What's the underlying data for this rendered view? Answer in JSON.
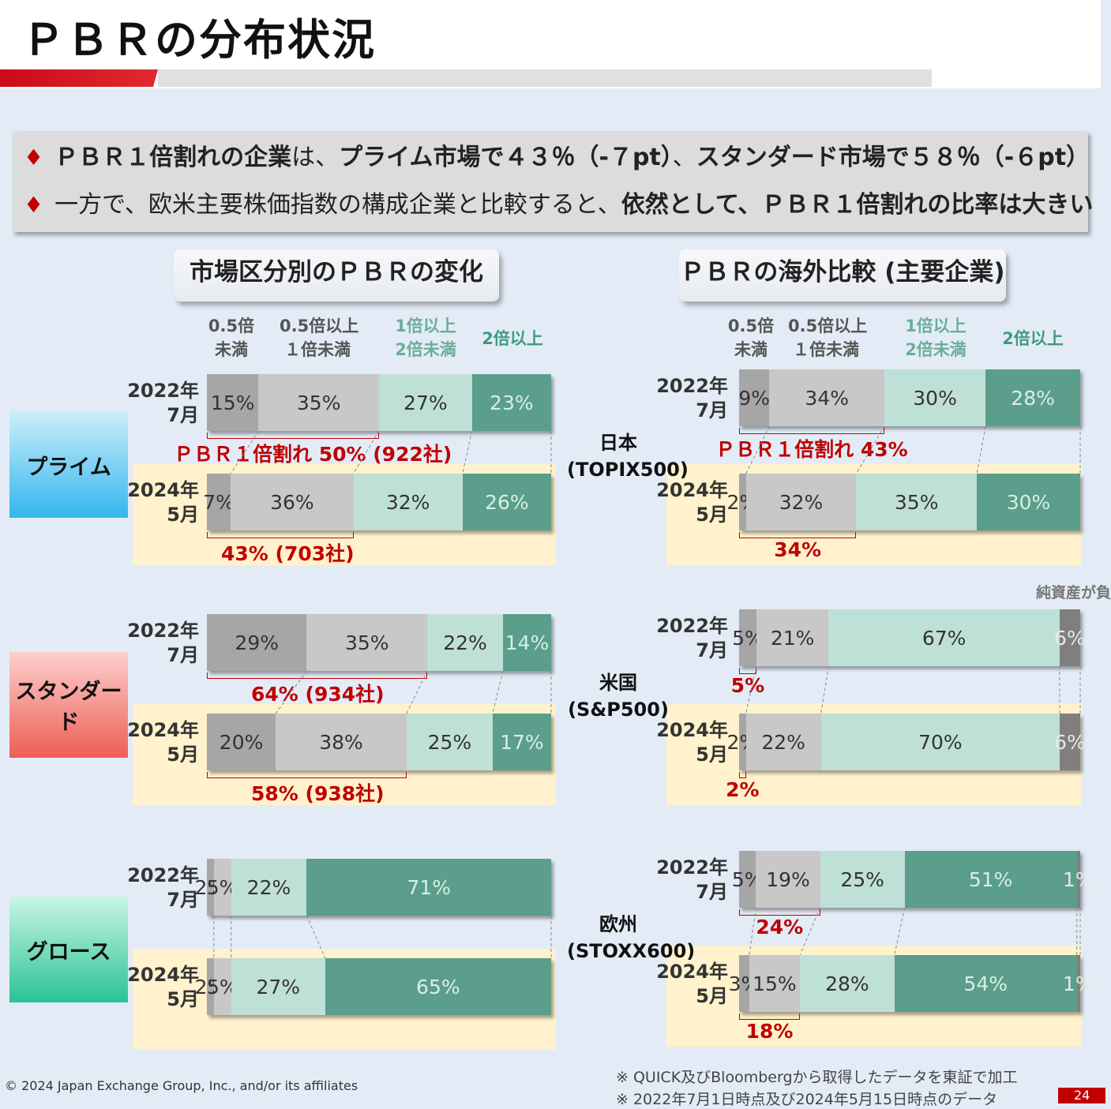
{
  "page": {
    "title": "ＰＢＲの分布状況",
    "bullets": [
      [
        {
          "text": "ＰＢＲ１倍割れの企業",
          "bold": true
        },
        {
          "text": "は、",
          "bold": false
        },
        {
          "text": "プライム市場で４３％（-７pt）",
          "bold": true
        },
        {
          "text": "、",
          "bold": false
        },
        {
          "text": "スタンダード市場で５８％（-６pt）",
          "bold": true
        }
      ],
      [
        {
          "text": "一方で、欧米主要株価指数の構成企業と比較すると、",
          "bold": false
        },
        {
          "text": "依然として、ＰＢＲ１倍割れの比率は大きい",
          "bold": true
        }
      ]
    ],
    "side_note": "純資産が負",
    "copyright": "© 2024 Japan Exchange Group, Inc., and/or its affiliates",
    "notes": [
      "※ QUICK及びBloombergから取得したデータを東証で加工",
      "※ 2022年7月1日時点及び2024年5月15日時点のデータ"
    ],
    "page_number": "24"
  },
  "colors": {
    "c1": "#a6a6a6",
    "c2": "#c8c8c8",
    "c3": "#bfe0d6",
    "c4": "#5a9e8b",
    "neg": "#7f7f7f",
    "callout": "#c00000",
    "band": "#fff2cc"
  },
  "chart_data": [
    {
      "type": "bar",
      "title": "市場区分別のＰＢＲの変化",
      "stacked": true,
      "orientation": "horizontal",
      "categories_legend": [
        "0.5倍\n未満",
        "0.5倍以上\n１倍未満",
        "1倍以上\n2倍未満",
        "2倍以上"
      ],
      "groups": [
        {
          "name": "プライム",
          "label_bg": [
            "#c9eefb",
            "#35b6ec"
          ],
          "rows": [
            {
              "year": "2022年\n7月",
              "values": [
                15,
                35,
                27,
                23
              ],
              "labels": [
                "15%",
                "35%",
                "27%",
                "23%"
              ],
              "callout": "ＰＢＲ１倍割れ 50% (922社)"
            },
            {
              "year": "2024年\n5月",
              "values": [
                7,
                36,
                32,
                26
              ],
              "labels": [
                "7%",
                "36%",
                "32%",
                "26%"
              ],
              "callout": "43% (703社)"
            }
          ]
        },
        {
          "name": "スタンダード",
          "label_bg": [
            "#fcd0cd",
            "#ef5d56"
          ],
          "rows": [
            {
              "year": "2022年\n7月",
              "values": [
                29,
                35,
                22,
                14
              ],
              "labels": [
                "29%",
                "35%",
                "22%",
                "14%"
              ],
              "callout": "64% (934社)"
            },
            {
              "year": "2024年\n5月",
              "values": [
                20,
                38,
                25,
                17
              ],
              "labels": [
                "20%",
                "38%",
                "25%",
                "17%"
              ],
              "callout": "58% (938社)"
            }
          ]
        },
        {
          "name": "グロース",
          "label_bg": [
            "#c9f5e6",
            "#29c395"
          ],
          "rows": [
            {
              "year": "2022年\n7月",
              "values": [
                2,
                5,
                22,
                71
              ],
              "labels": [
                "2%",
                "5%",
                "22%",
                "71%"
              ],
              "callout": ""
            },
            {
              "year": "2024年\n5月",
              "values": [
                2,
                5,
                27,
                65
              ],
              "labels": [
                "2%",
                "5%",
                "27%",
                "65%"
              ],
              "callout": ""
            }
          ]
        }
      ]
    },
    {
      "type": "bar",
      "title": "ＰＢＲの海外比較 (主要企業)",
      "stacked": true,
      "orientation": "horizontal",
      "categories_legend": [
        "0.5倍\n未満",
        "0.5倍以上\n１倍未満",
        "1倍以上\n2倍未満",
        "2倍以上"
      ],
      "groups": [
        {
          "name": "日本\n(TOPIX500)",
          "rows": [
            {
              "year": "2022年\n7月",
              "values": [
                9,
                34,
                30,
                28
              ],
              "labels": [
                "9%",
                "34%",
                "30%",
                "28%"
              ],
              "callout": "ＰＢＲ１倍割れ 43%"
            },
            {
              "year": "2024年\n5月",
              "values": [
                2,
                32,
                35,
                30
              ],
              "labels": [
                "2%",
                "32%",
                "35%",
                "30%"
              ],
              "callout": "34%"
            }
          ]
        },
        {
          "name": "米国\n(S&P500)",
          "rows": [
            {
              "year": "2022年\n7月",
              "values": [
                5,
                21,
                67,
                6
              ],
              "labels": [
                "5%",
                "21%",
                "67%",
                "6%"
              ],
              "callout": "5%",
              "last_is_negative": true
            },
            {
              "year": "2024年\n5月",
              "values": [
                2,
                22,
                70,
                6
              ],
              "labels": [
                "2%",
                "22%",
                "70%",
                "6%"
              ],
              "callout": "2%",
              "last_is_negative": true
            }
          ]
        },
        {
          "name": "欧州\n(STOXX600)",
          "rows": [
            {
              "year": "2022年\n7月",
              "values": [
                5,
                19,
                25,
                51,
                1
              ],
              "labels": [
                "5%",
                "19%",
                "25%",
                "51%",
                "1%"
              ],
              "callout": "24%",
              "last_is_negative": true
            },
            {
              "year": "2024年\n5月",
              "values": [
                3,
                15,
                28,
                54,
                1
              ],
              "labels": [
                "3%",
                "15%",
                "28%",
                "54%",
                "1%"
              ],
              "callout": "18%",
              "last_is_negative": true
            }
          ]
        }
      ]
    }
  ]
}
